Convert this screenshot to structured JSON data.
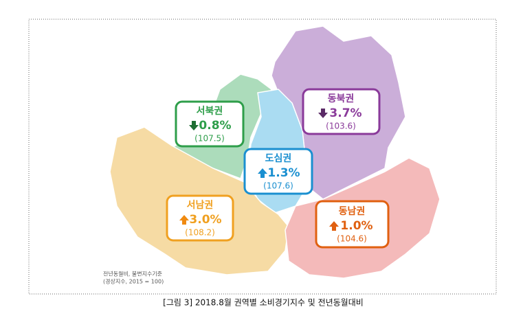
{
  "map": {
    "regions": [
      {
        "name": "서북권",
        "change": "0.8%",
        "index": "(107.5)"
      },
      {
        "name": "동북권",
        "change": "3.7%",
        "index": "(103.6)"
      },
      {
        "name": "도심권",
        "change": "1.3%",
        "index": "(107.6)"
      },
      {
        "name": "서남권",
        "change": "3.0%",
        "index": "(108.2)"
      },
      {
        "name": "동남권",
        "change": "1.0%",
        "index": "(104.6)"
      }
    ],
    "note": [
      "전년동월비, 불변지수기준",
      "(경상지수, 2015 = 100)"
    ]
  },
  "caption": "[그림 3] 2018.8월 권역별 소비경기지수 및 전년동월대비"
}
